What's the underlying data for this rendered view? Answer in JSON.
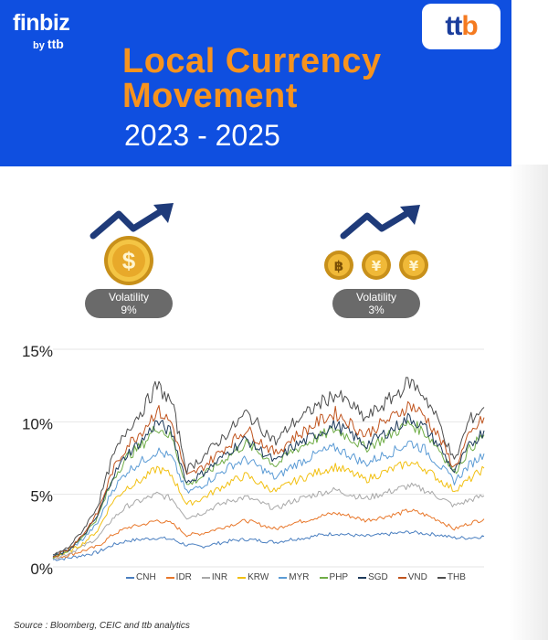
{
  "brand": {
    "name": "finbiz",
    "by": "by",
    "by_brand": "ttb"
  },
  "logo": {
    "t1": "t",
    "t2": "t",
    "b": "b"
  },
  "header": {
    "title_line1": "Local Currency",
    "title_line2": "Movement",
    "years": "2023 - 2025"
  },
  "volatility": [
    {
      "label": "Volatility",
      "value": "9%"
    },
    {
      "label": "Volatility",
      "value": "3%"
    }
  ],
  "coins": {
    "dollar": "$",
    "baht": "฿",
    "yen1": "¥",
    "yen2": "¥"
  },
  "source": "Source : Bloomberg, CEIC and ttb analytics",
  "colors": {
    "header_bg": "#0f4fe0",
    "title": "#f7931e",
    "pill": "#6a6a6a"
  },
  "chart_data": {
    "type": "line",
    "ylim": [
      0,
      15
    ],
    "yticks": [
      0,
      5,
      10,
      15
    ],
    "ytick_labels": [
      "0%",
      "5%",
      "10%",
      "15%"
    ],
    "x_points": 30,
    "series": [
      {
        "name": "CNH",
        "color": "#4a7fc0",
        "values": [
          0.5,
          0.6,
          0.8,
          1.0,
          1.5,
          1.8,
          1.9,
          2.0,
          1.9,
          1.5,
          1.4,
          1.6,
          1.8,
          1.9,
          1.8,
          1.7,
          1.9,
          2.0,
          2.2,
          2.3,
          2.2,
          2.1,
          2.2,
          2.3,
          2.4,
          2.3,
          2.2,
          2.0,
          2.0,
          2.1
        ]
      },
      {
        "name": "IDR",
        "color": "#e8772a",
        "values": [
          0.6,
          0.8,
          1.1,
          1.4,
          2.2,
          2.7,
          2.9,
          3.2,
          3.0,
          2.2,
          2.3,
          2.6,
          2.9,
          3.2,
          2.9,
          2.6,
          3.0,
          3.2,
          3.5,
          3.7,
          3.5,
          3.2,
          3.4,
          3.6,
          3.9,
          3.6,
          3.2,
          2.6,
          3.0,
          3.3
        ]
      },
      {
        "name": "INR",
        "color": "#a8a8a8",
        "values": [
          0.6,
          0.9,
          1.4,
          2.0,
          3.3,
          4.2,
          4.6,
          5.0,
          4.7,
          3.4,
          3.7,
          4.2,
          4.6,
          4.8,
          4.4,
          4.0,
          4.5,
          4.8,
          5.1,
          5.3,
          5.0,
          4.7,
          5.0,
          5.3,
          5.6,
          5.3,
          4.8,
          4.2,
          4.6,
          4.9
        ]
      },
      {
        "name": "KRW",
        "color": "#f2c012",
        "values": [
          0.7,
          1.0,
          1.6,
          2.5,
          4.5,
          5.5,
          6.0,
          6.8,
          6.3,
          4.3,
          4.7,
          5.3,
          5.9,
          6.3,
          5.7,
          5.2,
          5.8,
          6.2,
          6.6,
          6.9,
          6.5,
          6.0,
          6.4,
          6.8,
          7.2,
          6.8,
          6.0,
          5.3,
          6.0,
          6.8
        ]
      },
      {
        "name": "MYR",
        "color": "#5b9bd5",
        "values": [
          0.7,
          1.1,
          1.9,
          3.0,
          5.3,
          6.6,
          7.3,
          8.0,
          7.5,
          5.1,
          5.6,
          6.3,
          7.0,
          7.4,
          6.8,
          6.1,
          6.9,
          7.4,
          7.9,
          8.2,
          7.7,
          7.1,
          7.6,
          8.0,
          8.6,
          8.1,
          7.0,
          5.9,
          7.0,
          7.8
        ]
      },
      {
        "name": "PHP",
        "color": "#70ad47",
        "values": [
          0.7,
          1.1,
          2.1,
          3.4,
          6.0,
          7.6,
          8.4,
          9.7,
          8.9,
          5.6,
          6.2,
          7.0,
          7.8,
          8.5,
          7.8,
          7.0,
          7.9,
          8.5,
          9.0,
          9.5,
          8.9,
          8.2,
          8.7,
          9.3,
          9.9,
          9.3,
          8.1,
          6.5,
          8.1,
          9.1
        ]
      },
      {
        "name": "SGD",
        "color": "#1f3b5c",
        "values": [
          0.7,
          1.1,
          2.1,
          3.5,
          6.2,
          7.8,
          8.7,
          10.0,
          9.2,
          5.8,
          6.4,
          7.2,
          8.1,
          8.8,
          8.0,
          7.2,
          8.2,
          8.7,
          9.3,
          9.8,
          9.2,
          8.4,
          9.0,
          9.6,
          10.3,
          9.6,
          8.3,
          6.5,
          8.3,
          9.4
        ]
      },
      {
        "name": "VND",
        "color": "#c0541e",
        "values": [
          0.7,
          1.2,
          2.2,
          3.7,
          6.6,
          8.4,
          9.4,
          10.8,
          9.9,
          6.2,
          6.8,
          7.7,
          8.6,
          9.5,
          8.6,
          7.8,
          8.8,
          9.4,
          10.1,
          10.6,
          9.9,
          9.1,
          9.8,
          10.4,
          11.2,
          10.4,
          8.9,
          6.8,
          9.0,
          10.3
        ]
      },
      {
        "name": "THB",
        "color": "#4d4d4d",
        "values": [
          0.8,
          1.3,
          2.5,
          4.2,
          7.5,
          9.5,
          10.8,
          12.5,
          11.3,
          6.7,
          7.5,
          8.5,
          9.5,
          10.6,
          9.6,
          8.6,
          9.8,
          10.5,
          11.3,
          11.9,
          11.2,
          10.2,
          11.0,
          11.8,
          12.8,
          11.8,
          9.9,
          7.2,
          10.1,
          11.0
        ]
      }
    ]
  }
}
